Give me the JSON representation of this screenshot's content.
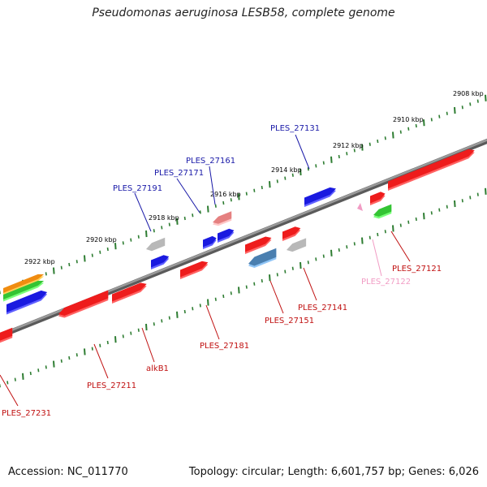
{
  "title": "Pseudomonas aeruginosa LESB58, complete genome",
  "footer": {
    "accession": "Accession: NC_011770",
    "topology": "Topology: circular; Length: 6,601,757 bp; Genes: 6,026"
  },
  "colors": {
    "backbone": "#888888",
    "tick": "#2e7d32",
    "fwd_label": "#1a1aa8",
    "rev_label": "#c01010",
    "pseudo_label": "#f19cc4",
    "red_gene": "#ee1c1c",
    "blue_gene": "#1a1ae0",
    "grey_gene": "#b8b8b8",
    "pink_gene": "#e58080",
    "steel_gene": "#4a7fb0",
    "green_gene": "#33c433",
    "orange_gene": "#f08c10"
  },
  "kbp_labels": [
    {
      "text": "2908 kbp",
      "pos": 2908
    },
    {
      "text": "2910 kbp",
      "pos": 2910
    },
    {
      "text": "2912 kbp",
      "pos": 2912
    },
    {
      "text": "2914 kbp",
      "pos": 2914
    },
    {
      "text": "2916 kbp",
      "pos": 2916
    },
    {
      "text": "2918 kbp",
      "pos": 2918
    },
    {
      "text": "2920 kbp",
      "pos": 2920
    },
    {
      "text": "2922 kbp",
      "pos": 2922
    }
  ],
  "gene_labels": [
    {
      "text": "PLES_27131",
      "strand": "fwd"
    },
    {
      "text": "PLES_27161",
      "strand": "fwd"
    },
    {
      "text": "PLES_27171",
      "strand": "fwd"
    },
    {
      "text": "PLES_27191",
      "strand": "fwd"
    },
    {
      "text": "PLES_27121",
      "strand": "rev"
    },
    {
      "text": "PLES_27122",
      "strand": "pseudo"
    },
    {
      "text": "PLES_27141",
      "strand": "rev"
    },
    {
      "text": "PLES_27151",
      "strand": "rev"
    },
    {
      "text": "PLES_27181",
      "strand": "rev"
    },
    {
      "text": "alkB1",
      "strand": "rev"
    },
    {
      "text": "PLES_27211",
      "strand": "rev"
    },
    {
      "text": "PLES_27231",
      "strand": "rev"
    }
  ]
}
